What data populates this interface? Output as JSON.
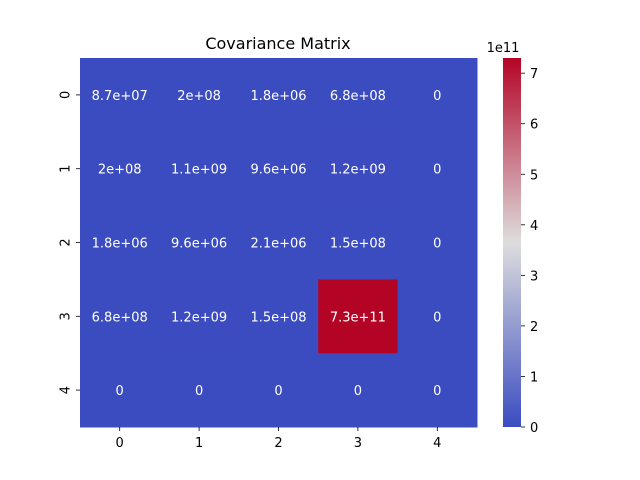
{
  "chart_data": {
    "type": "heatmap",
    "title": "Covariance Matrix",
    "x_categories": [
      "0",
      "1",
      "2",
      "3",
      "4"
    ],
    "y_categories": [
      "0",
      "1",
      "2",
      "3",
      "4"
    ],
    "values": [
      [
        87000000,
        200000000,
        1800000,
        680000000,
        0
      ],
      [
        200000000,
        1100000000,
        9600000,
        1200000000,
        0
      ],
      [
        1800000,
        9600000,
        2100000,
        150000000,
        0
      ],
      [
        680000000,
        1200000000,
        150000000,
        730000000000,
        0
      ],
      [
        0,
        0,
        0,
        0,
        0
      ]
    ],
    "annotations": [
      [
        "8.7e+07",
        "2e+08",
        "1.8e+06",
        "6.8e+08",
        "0"
      ],
      [
        "2e+08",
        "1.1e+09",
        "9.6e+06",
        "1.2e+09",
        "0"
      ],
      [
        "1.8e+06",
        "9.6e+06",
        "2.1e+06",
        "1.5e+08",
        "0"
      ],
      [
        "6.8e+08",
        "1.2e+09",
        "1.5e+08",
        "7.3e+11",
        "0"
      ],
      [
        "0",
        "0",
        "0",
        "0",
        "0"
      ]
    ],
    "colormap": "coolwarm",
    "colorbar": {
      "range": [
        0,
        730000000000
      ],
      "ticks": [
        0,
        1,
        2,
        3,
        4,
        5,
        6,
        7
      ],
      "tick_labels": [
        "0",
        "1",
        "2",
        "3",
        "4",
        "5",
        "6",
        "7"
      ],
      "tick_multiplier": 100000000000,
      "offset_label": "1e11"
    },
    "colors": {
      "low": "#3b4cc0",
      "mid": "#dddddd",
      "high": "#b40426"
    },
    "grid": false
  }
}
